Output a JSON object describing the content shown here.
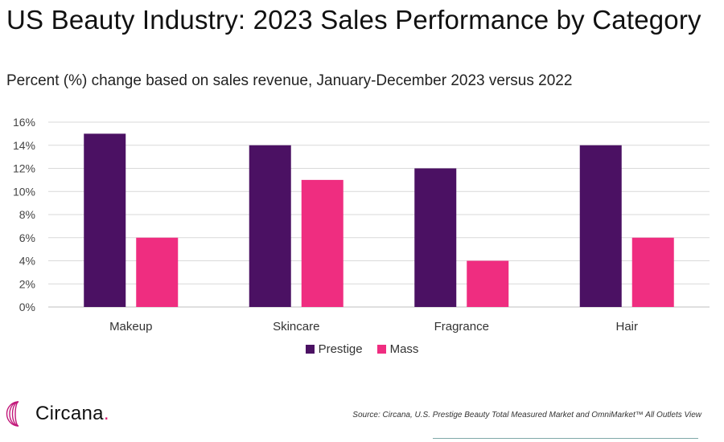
{
  "title": "US Beauty Industry: 2023 Sales Performance by Category",
  "subtitle": "Percent (%) change based on sales revenue, January-December 2023 versus 2022",
  "colors": {
    "prestige": "#4b1163",
    "mass": "#ef2d80",
    "grid": "#d9d9d9",
    "brand_accent": "#e01b70"
  },
  "chart_data": {
    "type": "bar",
    "categories": [
      "Makeup",
      "Skincare",
      "Fragrance",
      "Hair"
    ],
    "series": [
      {
        "name": "Prestige",
        "values": [
          15,
          14,
          12,
          14
        ]
      },
      {
        "name": "Mass",
        "values": [
          6,
          11,
          4,
          6
        ]
      }
    ],
    "ylim": [
      0,
      16
    ],
    "yticks": [
      0,
      2,
      4,
      6,
      8,
      10,
      12,
      14,
      16
    ],
    "ytick_format": "%",
    "grid": true,
    "legend_position": "bottom"
  },
  "logo": {
    "text": "Circana",
    "dot": "."
  },
  "source": "Source: Circana, U.S. Prestige Beauty Total Measured Market and OmniMarket™ All Outlets View"
}
